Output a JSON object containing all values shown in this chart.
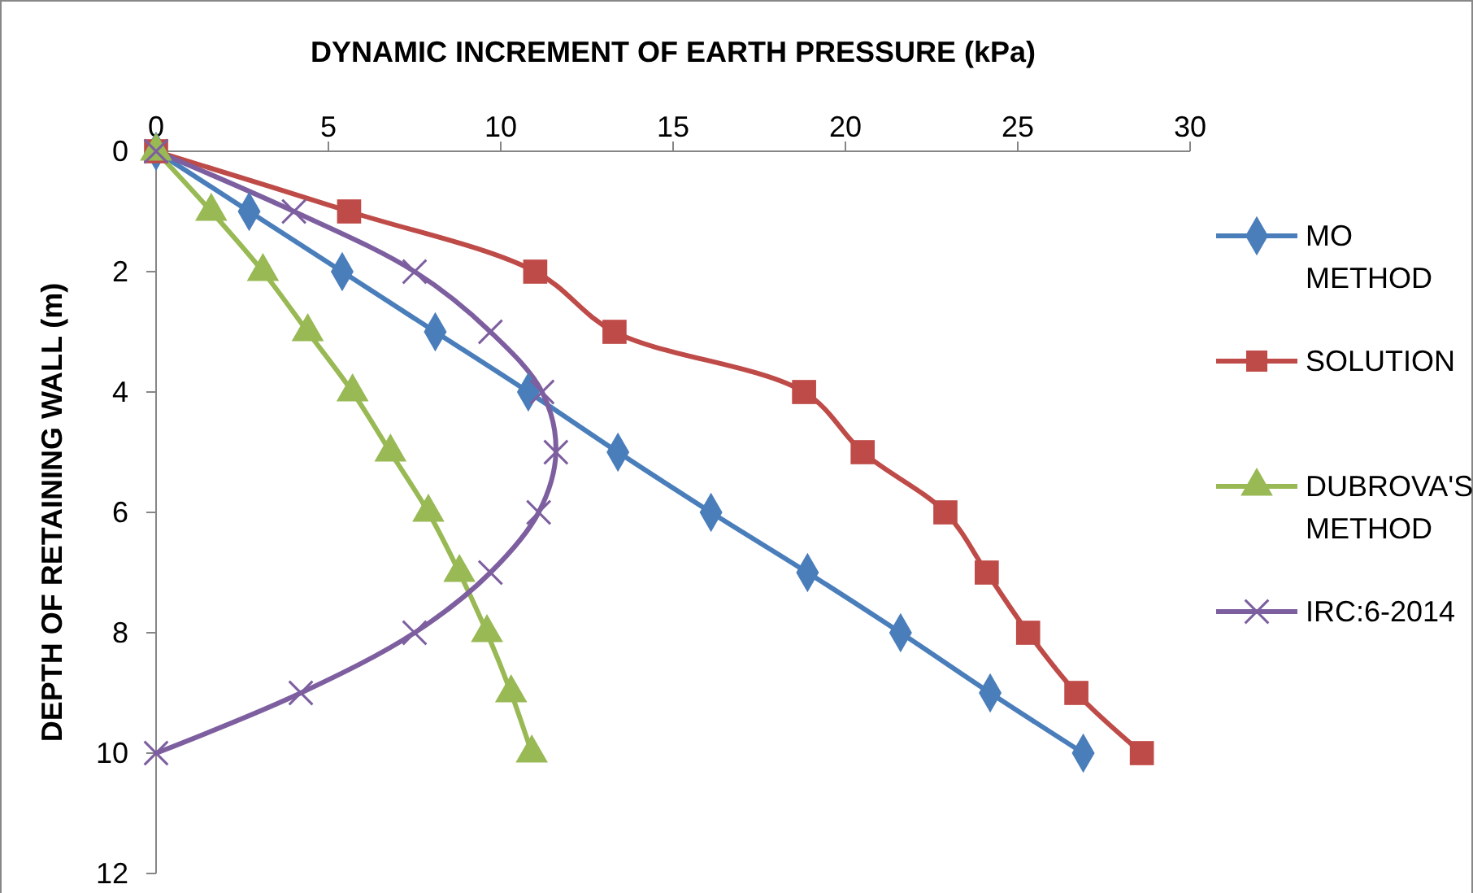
{
  "chart_data": {
    "type": "line",
    "xlabel": "DYNAMIC INCREMENT OF EARTH PRESSURE (kPa)",
    "ylabel": "DEPTH OF RETAINING WALL (m)",
    "xlim": [
      0,
      30
    ],
    "xticks": [
      0,
      5,
      10,
      15,
      20,
      25,
      30
    ],
    "ylim": [
      12,
      0
    ],
    "yticks": [
      0,
      2,
      4,
      6,
      8,
      10,
      12
    ],
    "grid": false,
    "legend": "right",
    "series": [
      {
        "name": "MO METHOD",
        "color": "#4a7ebb",
        "marker": "diamond",
        "x": [
          0,
          2.7,
          5.4,
          8.1,
          10.8,
          13.4,
          16.1,
          18.9,
          21.6,
          24.2,
          26.9
        ],
        "values": [
          0,
          1,
          2,
          3,
          4,
          5,
          6,
          7,
          8,
          9,
          10
        ]
      },
      {
        "name": "SOLUTION",
        "color": "#be4b48",
        "marker": "square",
        "x": [
          0,
          5.6,
          11.0,
          13.3,
          18.8,
          20.5,
          22.9,
          24.1,
          25.3,
          26.7,
          28.6
        ],
        "values": [
          0,
          1,
          2,
          3,
          4,
          5,
          6,
          7,
          8,
          9,
          10
        ]
      },
      {
        "name": "DUBROVA'S METHOD",
        "color": "#98b954",
        "marker": "triangle",
        "x": [
          0,
          1.6,
          3.1,
          4.4,
          5.7,
          6.8,
          7.9,
          8.8,
          9.6,
          10.3,
          10.9
        ],
        "values": [
          0,
          1,
          2,
          3,
          4,
          5,
          6,
          7,
          8,
          9,
          10
        ]
      },
      {
        "name": "IRC:6-2014",
        "color": "#7d5fa0",
        "marker": "cross",
        "x": [
          0,
          4.0,
          7.5,
          9.7,
          11.2,
          11.6,
          11.1,
          9.7,
          7.5,
          4.2,
          0
        ],
        "values": [
          0,
          1,
          2,
          3,
          4,
          5,
          6,
          7,
          8,
          9,
          10
        ]
      }
    ]
  }
}
